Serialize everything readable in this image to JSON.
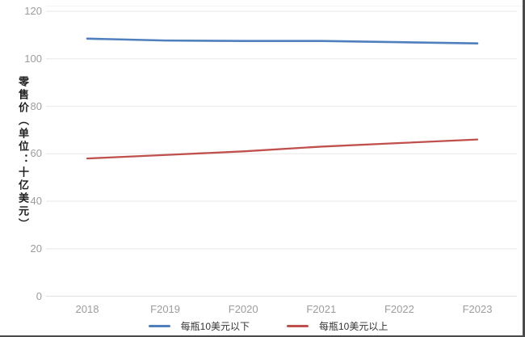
{
  "chart_data": {
    "type": "line",
    "categories": [
      "2018",
      "F2019",
      "F2020",
      "F2021",
      "F2022",
      "F2023"
    ],
    "series": [
      {
        "name": "每瓶10美元以下",
        "color": "#4f80bd",
        "values": [
          108.5,
          107.7,
          107.5,
          107.5,
          107.0,
          106.5
        ]
      },
      {
        "name": "每瓶10美元以上",
        "color": "#c0504d",
        "values": [
          58,
          59.5,
          61,
          63,
          64.5,
          66
        ]
      }
    ],
    "title": "",
    "xlabel": "",
    "ylabel": "零售价（单位：十亿美元）",
    "ylim": [
      0,
      120
    ],
    "ytick_step": 20,
    "grid": true,
    "legend_position": "bottom"
  },
  "colors": {
    "grid_line": "#ececec",
    "zero_line": "#e2e2e2",
    "tick_label": "#9c9c9c",
    "axis_title": "#1f1f1f",
    "frame_edge": "#4a4a4a"
  }
}
